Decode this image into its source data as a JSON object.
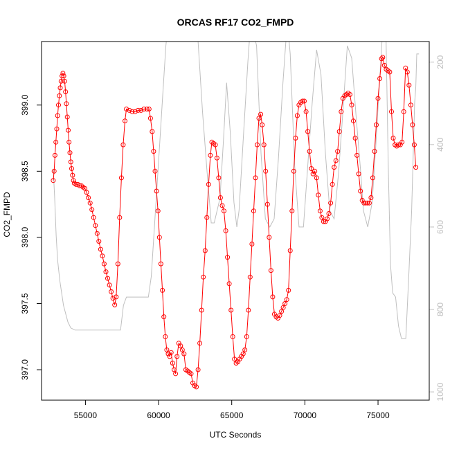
{
  "chart_data": {
    "type": "line",
    "title": "ORCAS RF17 CO2_FMPD",
    "xlabel": "UTC Seconds",
    "ylabel": "CO2_FMPD",
    "xlim": [
      52000,
      78500
    ],
    "ylim": [
      396.77,
      399.48
    ],
    "y2lim": [
      1020,
      150
    ],
    "x_ticks": [
      55000,
      60000,
      65000,
      70000,
      75000
    ],
    "x_tick_labels": [
      "55000",
      "60000",
      "65000",
      "70000",
      "75000"
    ],
    "y_ticks": [
      397.0,
      397.5,
      398.0,
      398.5,
      399.0
    ],
    "y_tick_labels": [
      "397.0",
      "397.5",
      "398.0",
      "398.5",
      "399.0"
    ],
    "y2_ticks": [
      200,
      400,
      600,
      800,
      1000
    ],
    "y2_tick_labels": [
      "200",
      "400",
      "600",
      "800",
      "1000"
    ],
    "grid": false,
    "series": [
      {
        "color": "#ff0000",
        "marker": "open-circle",
        "points": [
          [
            52800,
            398.43
          ],
          [
            52860,
            398.5
          ],
          [
            52920,
            398.62
          ],
          [
            52980,
            398.72
          ],
          [
            53040,
            398.82
          ],
          [
            53100,
            398.92
          ],
          [
            53160,
            399.0
          ],
          [
            53220,
            399.07
          ],
          [
            53280,
            399.13
          ],
          [
            53340,
            399.18
          ],
          [
            53400,
            399.22
          ],
          [
            53460,
            399.24
          ],
          [
            53520,
            399.22
          ],
          [
            53580,
            399.18
          ],
          [
            53640,
            399.1
          ],
          [
            53700,
            399.01
          ],
          [
            53760,
            398.91
          ],
          [
            53820,
            398.81
          ],
          [
            53880,
            398.72
          ],
          [
            53940,
            398.64
          ],
          [
            54000,
            398.57
          ],
          [
            54060,
            398.52
          ],
          [
            54120,
            398.47
          ],
          [
            54180,
            398.43
          ],
          [
            54240,
            398.41
          ],
          [
            54360,
            398.4
          ],
          [
            54480,
            398.4
          ],
          [
            54600,
            398.39
          ],
          [
            54720,
            398.39
          ],
          [
            54840,
            398.38
          ],
          [
            54960,
            398.37
          ],
          [
            55080,
            398.34
          ],
          [
            55200,
            398.3
          ],
          [
            55320,
            398.26
          ],
          [
            55440,
            398.21
          ],
          [
            55560,
            398.15
          ],
          [
            55680,
            398.09
          ],
          [
            55800,
            398.03
          ],
          [
            55920,
            397.97
          ],
          [
            56040,
            397.91
          ],
          [
            56160,
            397.86
          ],
          [
            56280,
            397.8
          ],
          [
            56400,
            397.74
          ],
          [
            56520,
            397.69
          ],
          [
            56640,
            397.64
          ],
          [
            56760,
            397.59
          ],
          [
            56880,
            397.54
          ],
          [
            57000,
            397.49
          ],
          [
            57100,
            397.55
          ],
          [
            57220,
            397.8
          ],
          [
            57340,
            398.15
          ],
          [
            57460,
            398.45
          ],
          [
            57580,
            398.7
          ],
          [
            57700,
            398.88
          ],
          [
            57800,
            398.97
          ],
          [
            58000,
            398.96
          ],
          [
            58200,
            398.95
          ],
          [
            58400,
            398.95
          ],
          [
            58600,
            398.96
          ],
          [
            58800,
            398.96
          ],
          [
            59000,
            398.97
          ],
          [
            59200,
            398.97
          ],
          [
            59350,
            398.97
          ],
          [
            59450,
            398.9
          ],
          [
            59560,
            398.8
          ],
          [
            59660,
            398.65
          ],
          [
            59760,
            398.5
          ],
          [
            59860,
            398.35
          ],
          [
            59960,
            398.2
          ],
          [
            60060,
            398.0
          ],
          [
            60160,
            397.8
          ],
          [
            60260,
            397.6
          ],
          [
            60360,
            397.4
          ],
          [
            60460,
            397.25
          ],
          [
            60560,
            397.15
          ],
          [
            60660,
            397.12
          ],
          [
            60760,
            397.1
          ],
          [
            60860,
            397.13
          ],
          [
            60960,
            397.05
          ],
          [
            61060,
            397.0
          ],
          [
            61160,
            396.97
          ],
          [
            61260,
            397.1
          ],
          [
            61380,
            397.2
          ],
          [
            61500,
            397.18
          ],
          [
            61620,
            397.15
          ],
          [
            61740,
            397.12
          ],
          [
            61860,
            397.0
          ],
          [
            61980,
            396.99
          ],
          [
            62100,
            396.98
          ],
          [
            62220,
            396.97
          ],
          [
            62340,
            396.9
          ],
          [
            62460,
            396.88
          ],
          [
            62580,
            396.87
          ],
          [
            62700,
            397.0
          ],
          [
            62820,
            397.2
          ],
          [
            62940,
            397.45
          ],
          [
            63060,
            397.7
          ],
          [
            63180,
            397.9
          ],
          [
            63300,
            398.15
          ],
          [
            63420,
            398.4
          ],
          [
            63540,
            398.62
          ],
          [
            63640,
            398.72
          ],
          [
            63760,
            398.71
          ],
          [
            63880,
            398.7
          ],
          [
            63990,
            398.6
          ],
          [
            64110,
            398.45
          ],
          [
            64230,
            398.3
          ],
          [
            64350,
            398.24
          ],
          [
            64470,
            398.2
          ],
          [
            64590,
            398.05
          ],
          [
            64710,
            397.85
          ],
          [
            64830,
            397.65
          ],
          [
            64950,
            397.45
          ],
          [
            65070,
            397.25
          ],
          [
            65190,
            397.08
          ],
          [
            65300,
            397.05
          ],
          [
            65420,
            397.06
          ],
          [
            65540,
            397.08
          ],
          [
            65660,
            397.1
          ],
          [
            65780,
            397.12
          ],
          [
            65900,
            397.15
          ],
          [
            66020,
            397.25
          ],
          [
            66140,
            397.45
          ],
          [
            66260,
            397.7
          ],
          [
            66380,
            397.95
          ],
          [
            66500,
            398.2
          ],
          [
            66620,
            398.45
          ],
          [
            66740,
            398.7
          ],
          [
            66860,
            398.9
          ],
          [
            66980,
            398.93
          ],
          [
            67080,
            398.85
          ],
          [
            67200,
            398.7
          ],
          [
            67320,
            398.5
          ],
          [
            67440,
            398.25
          ],
          [
            67560,
            398.0
          ],
          [
            67680,
            397.75
          ],
          [
            67800,
            397.55
          ],
          [
            67920,
            397.42
          ],
          [
            68040,
            397.4
          ],
          [
            68160,
            397.39
          ],
          [
            68280,
            397.41
          ],
          [
            68400,
            397.44
          ],
          [
            68520,
            397.47
          ],
          [
            68640,
            397.5
          ],
          [
            68760,
            397.53
          ],
          [
            68880,
            397.6
          ],
          [
            69000,
            397.9
          ],
          [
            69120,
            398.2
          ],
          [
            69240,
            398.5
          ],
          [
            69360,
            398.75
          ],
          [
            69480,
            398.92
          ],
          [
            69600,
            399.0
          ],
          [
            69720,
            399.02
          ],
          [
            69840,
            399.03
          ],
          [
            69960,
            399.03
          ],
          [
            70080,
            398.95
          ],
          [
            70200,
            398.8
          ],
          [
            70320,
            398.65
          ],
          [
            70440,
            398.52
          ],
          [
            70560,
            398.48
          ],
          [
            70680,
            398.5
          ],
          [
            70800,
            398.45
          ],
          [
            70920,
            398.32
          ],
          [
            71040,
            398.2
          ],
          [
            71160,
            398.15
          ],
          [
            71280,
            398.12
          ],
          [
            71400,
            398.12
          ],
          [
            71520,
            398.14
          ],
          [
            71640,
            398.18
          ],
          [
            71760,
            398.26
          ],
          [
            71880,
            398.4
          ],
          [
            72000,
            398.53
          ],
          [
            72120,
            398.58
          ],
          [
            72240,
            398.65
          ],
          [
            72360,
            398.8
          ],
          [
            72480,
            398.95
          ],
          [
            72600,
            399.05
          ],
          [
            72720,
            399.07
          ],
          [
            72840,
            399.08
          ],
          [
            72960,
            399.09
          ],
          [
            73080,
            399.08
          ],
          [
            73200,
            399.0
          ],
          [
            73320,
            398.88
          ],
          [
            73440,
            398.75
          ],
          [
            73560,
            398.62
          ],
          [
            73680,
            398.48
          ],
          [
            73800,
            398.35
          ],
          [
            73920,
            398.28
          ],
          [
            74040,
            398.26
          ],
          [
            74160,
            398.26
          ],
          [
            74280,
            398.26
          ],
          [
            74400,
            398.26
          ],
          [
            74520,
            398.3
          ],
          [
            74640,
            398.45
          ],
          [
            74760,
            398.65
          ],
          [
            74880,
            398.85
          ],
          [
            75000,
            399.05
          ],
          [
            75120,
            399.2
          ],
          [
            75240,
            399.35
          ],
          [
            75320,
            399.36
          ],
          [
            75440,
            399.3
          ],
          [
            75560,
            399.27
          ],
          [
            75680,
            399.26
          ],
          [
            75800,
            399.25
          ],
          [
            75920,
            398.95
          ],
          [
            76040,
            398.75
          ],
          [
            76160,
            398.7
          ],
          [
            76280,
            398.69
          ],
          [
            76400,
            398.7
          ],
          [
            76520,
            398.7
          ],
          [
            76640,
            398.72
          ],
          [
            76760,
            398.95
          ],
          [
            76880,
            399.28
          ],
          [
            77000,
            399.25
          ],
          [
            77120,
            399.15
          ],
          [
            77240,
            399.0
          ],
          [
            77360,
            398.85
          ],
          [
            77480,
            398.7
          ],
          [
            77580,
            398.53
          ]
        ]
      },
      {
        "color": "#bfbfbf",
        "axis": "right",
        "points": [
          [
            52800,
            460
          ],
          [
            52900,
            530
          ],
          [
            53000,
            620
          ],
          [
            53100,
            680
          ],
          [
            53250,
            730
          ],
          [
            53500,
            790
          ],
          [
            53800,
            830
          ],
          [
            54000,
            845
          ],
          [
            54300,
            850
          ],
          [
            57400,
            850
          ],
          [
            57600,
            790
          ],
          [
            57800,
            770
          ],
          [
            59300,
            770
          ],
          [
            59500,
            720
          ],
          [
            59750,
            580
          ],
          [
            60000,
            440
          ],
          [
            60250,
            300
          ],
          [
            60500,
            160
          ],
          [
            60900,
            20
          ],
          [
            61300,
            20
          ],
          [
            61500,
            110
          ],
          [
            61800,
            110
          ],
          [
            62050,
            30
          ],
          [
            62400,
            50
          ],
          [
            62700,
            150
          ],
          [
            63000,
            320
          ],
          [
            63300,
            460
          ],
          [
            63600,
            590
          ],
          [
            63800,
            590
          ],
          [
            64200,
            530
          ],
          [
            64450,
            380
          ],
          [
            64650,
            250
          ],
          [
            64900,
            370
          ],
          [
            65150,
            540
          ],
          [
            65350,
            600
          ],
          [
            65500,
            560
          ],
          [
            65800,
            380
          ],
          [
            66100,
            200
          ],
          [
            66300,
            100
          ],
          [
            66700,
            160
          ],
          [
            67000,
            420
          ],
          [
            67300,
            580
          ],
          [
            67600,
            600
          ],
          [
            67900,
            580
          ],
          [
            68200,
            430
          ],
          [
            68500,
            250
          ],
          [
            68800,
            100
          ],
          [
            69000,
            180
          ],
          [
            69300,
            450
          ],
          [
            69600,
            600
          ],
          [
            69900,
            600
          ],
          [
            70200,
            450
          ],
          [
            70500,
            300
          ],
          [
            70800,
            170
          ],
          [
            71100,
            230
          ],
          [
            71400,
            420
          ],
          [
            71700,
            560
          ],
          [
            72000,
            580
          ],
          [
            72300,
            470
          ],
          [
            72600,
            320
          ],
          [
            72900,
            160
          ],
          [
            73200,
            190
          ],
          [
            73500,
            330
          ],
          [
            73800,
            460
          ],
          [
            74000,
            560
          ],
          [
            74300,
            600
          ],
          [
            74600,
            540
          ],
          [
            74850,
            400
          ],
          [
            75100,
            250
          ],
          [
            75300,
            130
          ],
          [
            75400,
            80
          ],
          [
            75550,
            150
          ],
          [
            75700,
            450
          ],
          [
            75850,
            690
          ],
          [
            76000,
            760
          ],
          [
            76200,
            770
          ],
          [
            76400,
            840
          ],
          [
            76600,
            870
          ],
          [
            76900,
            870
          ],
          [
            77100,
            720
          ],
          [
            77300,
            560
          ],
          [
            77500,
            300
          ],
          [
            77580,
            260
          ],
          [
            77650,
            180
          ],
          [
            77800,
            180
          ]
        ]
      }
    ]
  }
}
